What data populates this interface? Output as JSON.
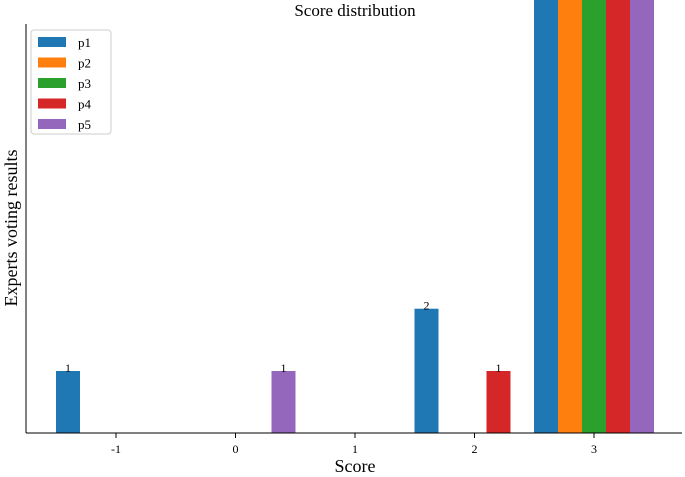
{
  "chart_data": {
    "type": "bar",
    "title": "Score distribution",
    "xlabel": "Score",
    "ylabel": "Experts voting results",
    "categories": [
      "-1",
      "0",
      "1",
      "2",
      "3"
    ],
    "series": [
      {
        "name": "p1",
        "color": "#1f77b4",
        "values": [
          1,
          0,
          0,
          2,
          97
        ]
      },
      {
        "name": "p2",
        "color": "#ff7f0e",
        "values": [
          0,
          0,
          0,
          0,
          100
        ]
      },
      {
        "name": "p3",
        "color": "#2ca02c",
        "values": [
          0,
          0,
          0,
          0,
          100
        ]
      },
      {
        "name": "p4",
        "color": "#d62728",
        "values": [
          0,
          0,
          0,
          1,
          99
        ]
      },
      {
        "name": "p5",
        "color": "#9467bd",
        "values": [
          0,
          1,
          0,
          0,
          99
        ]
      }
    ],
    "y_scale": "symlog",
    "yticks_visible": false,
    "legend": "top-left",
    "grid": false
  }
}
